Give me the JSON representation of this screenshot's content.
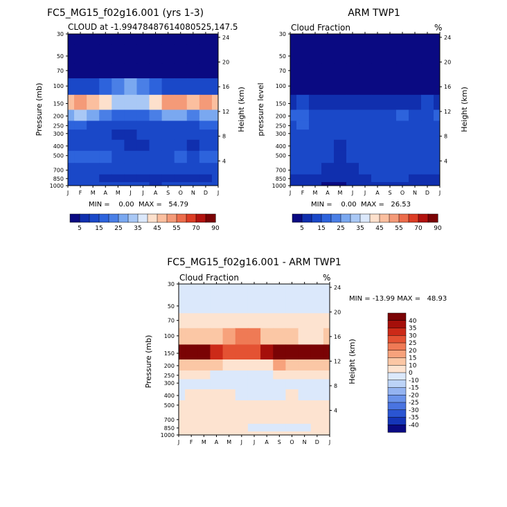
{
  "months": [
    "J",
    "F",
    "M",
    "A",
    "M",
    "J",
    "J",
    "A",
    "S",
    "O",
    "N",
    "D",
    "J"
  ],
  "pressure_ticks": [
    30,
    50,
    70,
    100,
    150,
    200,
    250,
    300,
    400,
    500,
    700,
    850,
    1000
  ],
  "height_ticks": [
    24,
    20,
    16,
    12,
    8,
    4
  ],
  "colors": {
    "model_levels": [
      "#0a0a82",
      "#102fae",
      "#1a48c8",
      "#2d63dc",
      "#4a7fe6",
      "#7aa8f0",
      "#a9c8f5",
      "#dbe8fb",
      "#fde0cc",
      "#fbbf9f",
      "#f49a78",
      "#ec6c4b",
      "#dc3c24",
      "#b2120e",
      "#7a0305"
    ],
    "diff_levels": [
      "#0a0a82",
      "#1535b8",
      "#2a55d2",
      "#4a74e0",
      "#6a92ea",
      "#94b3f1",
      "#bcd3f7",
      "#dbe8fb",
      "#fde3d0",
      "#fbc7a5",
      "#f7a27c",
      "#ef7a55",
      "#e45233",
      "#cc2a18",
      "#a50f0a",
      "#7a0305"
    ]
  },
  "panels": {
    "model": {
      "title": "FC5_MG15_f02g16.001 (yrs 1-3)",
      "subtitle": "CLOUD at -1.99478487614080525,147.5",
      "left_axis_label": "Pressure (mb)",
      "right_axis_label": "Height (km)",
      "stats": "MIN =    0.00  MAX =   54.79",
      "colorbar_labels": [
        "5",
        "15",
        "25",
        "35",
        "45",
        "55",
        "70",
        "90"
      ]
    },
    "obs": {
      "title": "ARM TWP1",
      "subtitle": "Cloud Fraction",
      "units": "%",
      "left_axis_label": "pressure level",
      "right_axis_label": "Height (km)",
      "stats": "MIN =    0.00  MAX =   26.53",
      "colorbar_labels": [
        "5",
        "15",
        "25",
        "35",
        "45",
        "55",
        "70",
        "90"
      ]
    },
    "diff": {
      "title": "FC5_MG15_f02g16.001 - ARM TWP1",
      "subtitle": "Cloud Fraction",
      "units": "%",
      "left_axis_label": "Pressure (mb)",
      "right_axis_label": "Height (km)",
      "stats": "MIN = -13.99 MAX =   48.93",
      "colorbar_labels": [
        "40",
        "35",
        "30",
        "25",
        "20",
        "15",
        "10",
        "0",
        "-10",
        "-15",
        "-20",
        "-25",
        "-30",
        "-35",
        "-40"
      ]
    }
  },
  "chart_data": [
    {
      "type": "heatmap",
      "title": "FC5_MG15_f02g16.001 (yrs 1-3)",
      "subtitle": "CLOUD at -1.99478487614080525,147.5",
      "x": [
        "J",
        "F",
        "M",
        "A",
        "M",
        "J",
        "J",
        "A",
        "S",
        "O",
        "N",
        "D",
        "J"
      ],
      "y": [
        30,
        50,
        70,
        100,
        150,
        200,
        250,
        300,
        400,
        500,
        700,
        850,
        1000
      ],
      "ylabel": "Pressure (mb)",
      "y2label": "Height (km)",
      "levels": [
        5,
        10,
        15,
        20,
        25,
        30,
        35,
        40,
        45,
        50,
        55,
        60,
        70,
        80,
        90
      ],
      "values": [
        [
          2,
          2,
          2,
          2,
          2,
          2,
          2,
          2,
          2,
          2,
          2,
          2,
          2
        ],
        [
          2,
          2,
          2,
          2,
          2,
          2,
          2,
          2,
          2,
          2,
          2,
          2,
          2
        ],
        [
          3,
          3,
          3,
          4,
          4,
          4,
          4,
          3,
          3,
          3,
          3,
          3,
          3
        ],
        [
          14,
          12,
          14,
          18,
          22,
          28,
          24,
          18,
          14,
          13,
          12,
          12,
          14
        ],
        [
          46,
          50,
          48,
          40,
          34,
          30,
          32,
          44,
          50,
          50,
          48,
          50,
          46
        ],
        [
          28,
          30,
          26,
          22,
          18,
          16,
          18,
          22,
          28,
          26,
          24,
          26,
          28
        ],
        [
          16,
          15,
          14,
          12,
          11,
          10,
          11,
          12,
          14,
          14,
          13,
          15,
          16
        ],
        [
          12,
          12,
          11,
          10,
          9,
          9,
          10,
          10,
          11,
          10,
          10,
          11,
          12
        ],
        [
          11,
          11,
          10,
          11,
          10,
          6,
          9,
          10,
          10,
          10,
          8,
          10,
          11
        ],
        [
          16,
          16,
          16,
          15,
          14,
          13,
          12,
          13,
          14,
          15,
          14,
          15,
          16
        ],
        [
          14,
          12,
          13,
          12,
          11,
          11,
          11,
          12,
          12,
          13,
          12,
          13,
          14
        ],
        [
          11,
          10,
          11,
          9,
          9,
          8,
          8,
          8,
          9,
          9,
          8,
          9,
          11
        ],
        [
          12,
          11,
          11,
          10,
          10,
          10,
          10,
          9,
          10,
          10,
          10,
          11,
          12
        ]
      ],
      "min": 0.0,
      "max": 54.79
    },
    {
      "type": "heatmap",
      "title": "ARM TWP1",
      "subtitle": "Cloud Fraction",
      "x": [
        "J",
        "F",
        "M",
        "A",
        "M",
        "J",
        "J",
        "A",
        "S",
        "O",
        "N",
        "D",
        "J"
      ],
      "y": [
        30,
        50,
        70,
        100,
        150,
        200,
        250,
        300,
        400,
        500,
        700,
        850,
        1000
      ],
      "ylabel": "pressure level",
      "y2label": "Height (km)",
      "levels": [
        5,
        10,
        15,
        20,
        25,
        30,
        35,
        40,
        45,
        50,
        55,
        60,
        70,
        80,
        90
      ],
      "values": [
        [
          1,
          1,
          1,
          1,
          1,
          1,
          1,
          1,
          1,
          1,
          1,
          1,
          1
        ],
        [
          1,
          1,
          1,
          1,
          1,
          1,
          1,
          1,
          1,
          1,
          1,
          1,
          1
        ],
        [
          1,
          1,
          1,
          1,
          1,
          1,
          1,
          1,
          1,
          1,
          1,
          1,
          1
        ],
        [
          3,
          3,
          3,
          3,
          3,
          3,
          3,
          3,
          3,
          3,
          3,
          3,
          3
        ],
        [
          9,
          10,
          9,
          8,
          7,
          6,
          7,
          8,
          9,
          9,
          9,
          10,
          9
        ],
        [
          15,
          16,
          14,
          12,
          13,
          13,
          14,
          13,
          12,
          16,
          14,
          14,
          15
        ],
        [
          14,
          15,
          14,
          13,
          12,
          13,
          14,
          13,
          12,
          14,
          13,
          14,
          14
        ],
        [
          13,
          14,
          12,
          11,
          11,
          11,
          12,
          12,
          11,
          11,
          12,
          13,
          13
        ],
        [
          11,
          12,
          13,
          11,
          9,
          11,
          12,
          11,
          10,
          10,
          11,
          12,
          11
        ],
        [
          12,
          13,
          12,
          10,
          8,
          10,
          11,
          12,
          13,
          13,
          12,
          13,
          12
        ],
        [
          11,
          11,
          10,
          8,
          6,
          9,
          11,
          11,
          12,
          12,
          11,
          11,
          11
        ],
        [
          9,
          9,
          8,
          6,
          5,
          7,
          9,
          10,
          10,
          10,
          9,
          9,
          9
        ],
        [
          6,
          6,
          5,
          4,
          3,
          5,
          6,
          6,
          6,
          6,
          6,
          6,
          6
        ]
      ],
      "min": 0.0,
      "max": 26.53
    },
    {
      "type": "heatmap",
      "title": "FC5_MG15_f02g16.001 - ARM TWP1",
      "subtitle": "Cloud Fraction",
      "x": [
        "J",
        "F",
        "M",
        "A",
        "M",
        "J",
        "J",
        "A",
        "S",
        "O",
        "N",
        "D",
        "J"
      ],
      "y": [
        30,
        50,
        70,
        100,
        150,
        200,
        250,
        300,
        400,
        500,
        700,
        850,
        1000
      ],
      "ylabel": "Pressure (mb)",
      "y2label": "Height (km)",
      "levels": [
        -40,
        -35,
        -30,
        -25,
        -20,
        -15,
        -10,
        0,
        10,
        15,
        20,
        25,
        30,
        35,
        40
      ],
      "values": [
        [
          -2,
          -2,
          -2,
          -2,
          -2,
          -2,
          -2,
          -2,
          -2,
          -2,
          -2,
          -2,
          -2
        ],
        [
          -1,
          -2,
          -2,
          -2,
          -2,
          -2,
          -2,
          -2,
          -2,
          -2,
          -2,
          -2,
          -1
        ],
        [
          1,
          1,
          1,
          1,
          1,
          2,
          3,
          2,
          1,
          1,
          1,
          1,
          1
        ],
        [
          12,
          10,
          10,
          12,
          15,
          22,
          20,
          14,
          10,
          10,
          9,
          9,
          12
        ],
        [
          42,
          43,
          40,
          33,
          28,
          26,
          26,
          36,
          42,
          44,
          42,
          44,
          42
        ],
        [
          14,
          14,
          12,
          10,
          6,
          3,
          4,
          9,
          16,
          12,
          11,
          12,
          14
        ],
        [
          3,
          1,
          1,
          -1,
          -2,
          -4,
          -3,
          -2,
          2,
          1,
          0,
          1,
          3
        ],
        [
          -1,
          -2,
          -1,
          -1,
          -2,
          -3,
          -3,
          -2,
          -1,
          -1,
          -2,
          -2,
          -1
        ],
        [
          -1,
          1,
          1,
          1,
          1,
          -6,
          -5,
          -2,
          -1,
          0,
          -2,
          -2,
          -1
        ],
        [
          4,
          3,
          4,
          5,
          6,
          3,
          1,
          1,
          1,
          2,
          2,
          2,
          4
        ],
        [
          3,
          1,
          3,
          4,
          5,
          2,
          0,
          1,
          0,
          1,
          1,
          2,
          3
        ],
        [
          2,
          1,
          3,
          3,
          4,
          1,
          -1,
          -2,
          -1,
          -1,
          -1,
          0,
          2
        ],
        [
          6,
          5,
          6,
          6,
          7,
          5,
          4,
          3,
          4,
          4,
          4,
          5,
          6
        ]
      ],
      "min": -13.99,
      "max": 48.93
    }
  ]
}
